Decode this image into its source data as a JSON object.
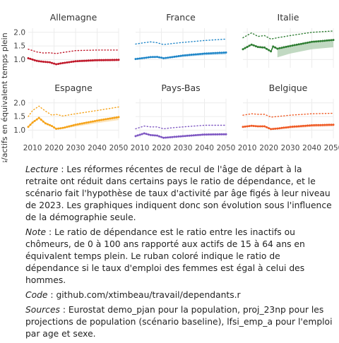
{
  "y_axis_title": "Dépendants/actifs en équivalent temps plein",
  "colors": {
    "Allemagne": "#c0182a",
    "France": "#1f86c8",
    "Italie": "#2e7d32",
    "Espagne": "#f5a31a",
    "Pays-Bas": "#7e57c2",
    "Belgique": "#ef5a24"
  },
  "chart_data": {
    "type": "line",
    "layout": "small-multiples 2x3",
    "x_ticks": [
      2010,
      2020,
      2030,
      2040,
      2050
    ],
    "xlim": [
      2008,
      2050
    ],
    "y_ticks": [
      1.0,
      1.5,
      2.0
    ],
    "y_tick_labels": [
      "1.0",
      "1.5",
      "2.0"
    ],
    "ylim": [
      0.7,
      2.15
    ],
    "grid": true,
    "panels": [
      {
        "name": "Allemagne",
        "series": [
          {
            "style": "dotted",
            "x": [
              2008,
              2012,
              2015,
              2018,
              2021,
              2024,
              2030,
              2040,
              2050
            ],
            "y": [
              1.38,
              1.28,
              1.24,
              1.25,
              1.22,
              1.26,
              1.33,
              1.35,
              1.35
            ]
          },
          {
            "style": "solid",
            "x": [
              2008,
              2012,
              2015,
              2018,
              2021,
              2024,
              2030,
              2040,
              2050
            ],
            "y": [
              1.05,
              0.95,
              0.92,
              0.9,
              0.83,
              0.87,
              0.94,
              0.98,
              0.99
            ]
          }
        ],
        "band": {
          "x": [
            2024,
            2030,
            2040,
            2050
          ],
          "lower": [
            0.86,
            0.9,
            0.93,
            0.94
          ],
          "upper": [
            0.88,
            0.94,
            0.98,
            0.99
          ]
        }
      },
      {
        "name": "France",
        "series": [
          {
            "style": "dotted",
            "x": [
              2008,
              2012,
              2015,
              2018,
              2021,
              2024,
              2030,
              2040,
              2050
            ],
            "y": [
              1.57,
              1.62,
              1.65,
              1.62,
              1.55,
              1.58,
              1.63,
              1.7,
              1.75
            ]
          },
          {
            "style": "solid",
            "x": [
              2008,
              2012,
              2015,
              2018,
              2021,
              2024,
              2030,
              2040,
              2050
            ],
            "y": [
              1.02,
              1.06,
              1.09,
              1.1,
              1.05,
              1.08,
              1.15,
              1.22,
              1.26
            ]
          }
        ],
        "band": {
          "x": [
            2024,
            2030,
            2040,
            2050
          ],
          "lower": [
            1.05,
            1.1,
            1.16,
            1.19
          ],
          "upper": [
            1.08,
            1.15,
            1.22,
            1.26
          ]
        }
      },
      {
        "name": "Italie",
        "series": [
          {
            "style": "dotted",
            "x": [
              2008,
              2012,
              2015,
              2018,
              2021,
              2024,
              2030,
              2040,
              2050
            ],
            "y": [
              1.8,
              1.98,
              1.85,
              1.88,
              1.75,
              1.8,
              1.88,
              2.0,
              2.05
            ]
          },
          {
            "style": "solid",
            "x": [
              2008,
              2012,
              2015,
              2018,
              2021,
              2022,
              2024,
              2030,
              2040,
              2050
            ],
            "y": [
              1.38,
              1.55,
              1.46,
              1.44,
              1.3,
              1.48,
              1.4,
              1.5,
              1.65,
              1.72
            ]
          }
        ],
        "band": {
          "x": [
            2024,
            2030,
            2040,
            2050
          ],
          "lower": [
            1.08,
            1.22,
            1.38,
            1.45
          ],
          "upper": [
            1.4,
            1.5,
            1.65,
            1.72
          ]
        }
      },
      {
        "name": "Espagne",
        "series": [
          {
            "style": "dotted",
            "x": [
              2008,
              2010,
              2013,
              2016,
              2019,
              2021,
              2024,
              2030,
              2040,
              2050
            ],
            "y": [
              1.5,
              1.72,
              1.88,
              1.7,
              1.55,
              1.58,
              1.52,
              1.6,
              1.72,
              1.85
            ]
          },
          {
            "style": "solid",
            "x": [
              2008,
              2010,
              2013,
              2016,
              2019,
              2021,
              2024,
              2030,
              2040,
              2050
            ],
            "y": [
              1.12,
              1.28,
              1.45,
              1.25,
              1.15,
              1.05,
              1.08,
              1.2,
              1.35,
              1.48
            ]
          }
        ],
        "band": {
          "x": [
            2024,
            2030,
            2040,
            2050
          ],
          "lower": [
            1.05,
            1.13,
            1.26,
            1.37
          ],
          "upper": [
            1.08,
            1.2,
            1.35,
            1.48
          ]
        }
      },
      {
        "name": "Pays-Bas",
        "series": [
          {
            "style": "dotted",
            "x": [
              2008,
              2012,
              2015,
              2018,
              2021,
              2024,
              2030,
              2040,
              2050
            ],
            "y": [
              1.05,
              1.15,
              1.12,
              1.12,
              1.05,
              1.08,
              1.12,
              1.18,
              1.18
            ]
          },
          {
            "style": "solid",
            "x": [
              2008,
              2012,
              2015,
              2018,
              2021,
              2024,
              2030,
              2040,
              2050
            ],
            "y": [
              0.78,
              0.88,
              0.82,
              0.8,
              0.72,
              0.74,
              0.78,
              0.84,
              0.85
            ]
          }
        ],
        "band": {
          "x": [
            2024,
            2030,
            2040,
            2050
          ],
          "lower": [
            0.72,
            0.75,
            0.8,
            0.81
          ],
          "upper": [
            0.74,
            0.78,
            0.84,
            0.85
          ]
        }
      },
      {
        "name": "Belgique",
        "series": [
          {
            "style": "dotted",
            "x": [
              2008,
              2012,
              2015,
              2018,
              2021,
              2024,
              2030,
              2040,
              2050
            ],
            "y": [
              1.55,
              1.6,
              1.58,
              1.58,
              1.48,
              1.5,
              1.55,
              1.6,
              1.62
            ]
          },
          {
            "style": "solid",
            "x": [
              2008,
              2012,
              2015,
              2018,
              2021,
              2024,
              2030,
              2040,
              2050
            ],
            "y": [
              1.12,
              1.16,
              1.14,
              1.14,
              1.04,
              1.06,
              1.12,
              1.18,
              1.2
            ]
          }
        ],
        "band": {
          "x": [
            2024,
            2030,
            2040,
            2050
          ],
          "lower": [
            1.03,
            1.07,
            1.12,
            1.14
          ],
          "upper": [
            1.06,
            1.12,
            1.18,
            1.2
          ]
        }
      }
    ]
  },
  "notes": {
    "lecture_label": "Lecture",
    "lecture_text": " : Les réformes récentes de recul de l'âge de départ à la retraite ont réduit dans certains pays le ratio de dépendance, et le scénario fait l'hypothèse de taux d'activité par âge figés à leur niveau de 2023. Les graphiques indiquent donc son évolution sous l'influence de la démographie seule.",
    "note_label": "Note",
    "note_text": " : Le ratio de dépendance est le ratio entre les inactifs ou chômeurs, de 0 à 100 ans rapporté aux actifs de 15 à 64 ans en équivalent temps plein. Le ruban coloré indique le ratio de dépendance si le taux d'emploi des femmes est égal à celui des hommes.",
    "code_label": "Code",
    "code_text": " : github.com/xtimbeau/travail/dependants.r",
    "sources_label": "Sources",
    "sources_text": " : Eurostat demo_pjan pour la population, proj_23np pour les projections de population (scénario baseline), lfsi_emp_a pour l'emploi par age et sexe."
  }
}
